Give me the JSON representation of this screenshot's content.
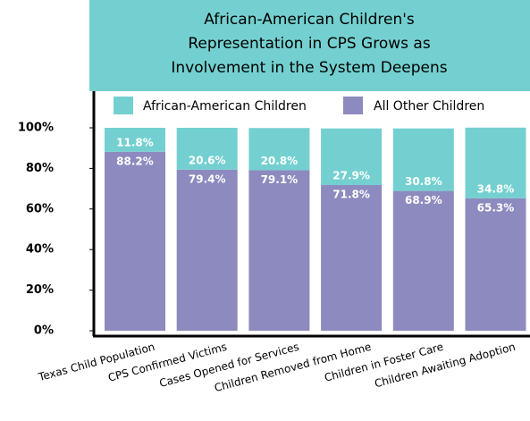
{
  "chart_data": {
    "type": "stacked_bar",
    "title": [
      "African-American Children's",
      "Representation in CPS Grows as",
      "Involvement in the System Deepens"
    ],
    "categories": [
      "Texas Child Population",
      "CPS Confirmed Victims",
      "Cases Opened for Services",
      "Children Removed from Home",
      "Children in Foster Care",
      "Children Awaiting Adoption"
    ],
    "series": [
      {
        "name": "All Other Children",
        "color": "#8d8abf",
        "values": [
          88.2,
          79.4,
          79.1,
          71.8,
          68.9,
          65.3
        ],
        "value_labels": [
          "88.2%",
          "79.4%",
          "79.1%",
          "71.8%",
          "68.9%",
          "65.3%"
        ]
      },
      {
        "name": "African-American Children",
        "color": "#74d0d0",
        "values": [
          11.8,
          20.6,
          20.8,
          27.9,
          30.8,
          34.8
        ],
        "value_labels": [
          "11.8%",
          "20.6%",
          "20.8%",
          "27.9%",
          "30.8%",
          "34.8%"
        ]
      }
    ],
    "ylim": [
      0,
      100
    ],
    "yticks": [
      {
        "value": 0,
        "label": "0%"
      },
      {
        "value": 20,
        "label": "20%"
      },
      {
        "value": 40,
        "label": "40%"
      },
      {
        "value": 60,
        "label": "60%"
      },
      {
        "value": 80,
        "label": "80%"
      },
      {
        "value": 100,
        "label": "100%"
      }
    ]
  }
}
